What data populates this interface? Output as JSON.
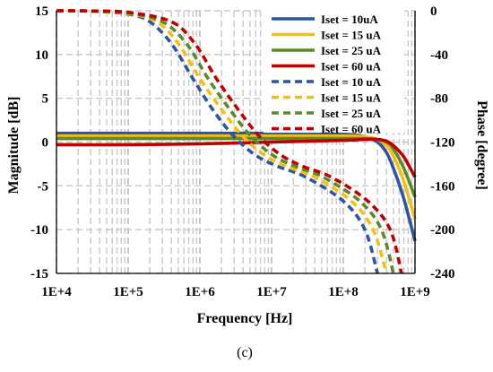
{
  "chart_data": {
    "type": "line",
    "caption": "(c)",
    "xlabel": "Frequency [Hz]",
    "ylabel_left": "Magnitude [dB]",
    "ylabel_right": "Phase [degree]",
    "x_scale": "log",
    "xlim": [
      10000,
      1000000000
    ],
    "x_ticks": [
      10000,
      100000,
      1000000,
      10000000,
      100000000,
      1000000000
    ],
    "x_tick_labels": [
      "1E+4",
      "1E+5",
      "1E+6",
      "1E+7",
      "1E+8",
      "1E+9"
    ],
    "ylim_left": [
      -15,
      15
    ],
    "y_ticks_left": [
      15,
      10,
      5,
      0,
      -5,
      -10,
      -15
    ],
    "y_tick_labels_left": [
      "15",
      "10",
      "5",
      "0",
      "-5",
      "-10",
      "-15"
    ],
    "ylim_right": [
      -240,
      0
    ],
    "y_ticks_right": [
      0,
      -40,
      -80,
      -120,
      -160,
      -200,
      -240
    ],
    "y_tick_labels_right": [
      "0",
      "-40",
      "-80",
      "-120",
      "-160",
      "-200",
      "-240"
    ],
    "grid": true,
    "legend_position": "top-right",
    "series": [
      {
        "name": "Iset = 10uA",
        "color": "#2e54a4",
        "dash": "solid",
        "axis": "left",
        "x": [
          10000,
          100000,
          1000000,
          10000000,
          100000000,
          200000000,
          300000000,
          400000000,
          500000000,
          700000000,
          1000000000
        ],
        "y": [
          1.0,
          1.0,
          1.0,
          1.0,
          0.9,
          0.6,
          0.0,
          -1.2,
          -3.0,
          -6.5,
          -11.3
        ]
      },
      {
        "name": "Iset = 15 uA",
        "color": "#f5be10",
        "dash": "solid",
        "axis": "left",
        "x": [
          10000,
          100000,
          1000000,
          10000000,
          100000000,
          200000000,
          300000000,
          400000000,
          500000000,
          700000000,
          1000000000
        ],
        "y": [
          0.7,
          0.7,
          0.7,
          0.7,
          0.7,
          0.6,
          0.3,
          -0.4,
          -1.6,
          -4.5,
          -8.8
        ]
      },
      {
        "name": "Iset = 25 uA",
        "color": "#5a8a2c",
        "dash": "solid",
        "axis": "left",
        "x": [
          10000,
          100000,
          1000000,
          10000000,
          100000000,
          200000000,
          300000000,
          400000000,
          500000000,
          700000000,
          1000000000
        ],
        "y": [
          0.4,
          0.4,
          0.4,
          0.4,
          0.4,
          0.4,
          0.3,
          0.0,
          -0.8,
          -3.0,
          -6.3
        ]
      },
      {
        "name": "Iset = 60 uA",
        "color": "#c00000",
        "dash": "solid",
        "axis": "left",
        "x": [
          10000,
          100000,
          1000000,
          10000000,
          100000000,
          200000000,
          300000000,
          400000000,
          500000000,
          700000000,
          1000000000
        ],
        "y": [
          -0.3,
          -0.3,
          -0.2,
          0.0,
          0.2,
          0.3,
          0.3,
          0.1,
          -0.4,
          -1.7,
          -4.0
        ]
      },
      {
        "name": "Iset = 10 uA",
        "color": "#2e54a4",
        "dash": "dashed",
        "axis": "right",
        "x": [
          10000,
          30000,
          100000,
          200000,
          400000,
          800000,
          1500000,
          3000000,
          6000000,
          12000000,
          30000000,
          100000000,
          200000000,
          300000000
        ],
        "y": [
          0,
          -0.3,
          -3,
          -10,
          -30,
          -62,
          -90,
          -115,
          -132,
          -142,
          -152,
          -174,
          -200,
          -240
        ]
      },
      {
        "name": "Iset = 15 uA",
        "color": "#f5be10",
        "dash": "dashed",
        "axis": "right",
        "x": [
          10000,
          30000,
          100000,
          250000,
          500000,
          1000000,
          2000000,
          4000000,
          8000000,
          16000000,
          40000000,
          130000000,
          260000000,
          400000000
        ],
        "y": [
          0,
          -0.3,
          -2.5,
          -10,
          -30,
          -62,
          -90,
          -115,
          -132,
          -142,
          -152,
          -174,
          -200,
          -240
        ]
      },
      {
        "name": "Iset = 25 uA",
        "color": "#5a8a2c",
        "dash": "dashed",
        "axis": "right",
        "x": [
          10000,
          30000,
          100000,
          300000,
          650000,
          1300000,
          2600000,
          5200000,
          10400000,
          21000000,
          52000000,
          170000000,
          340000000,
          500000000
        ],
        "y": [
          0,
          -0.3,
          -2,
          -10,
          -30,
          -62,
          -90,
          -115,
          -132,
          -142,
          -152,
          -174,
          -200,
          -240
        ]
      },
      {
        "name": "Iset = 60 uA",
        "color": "#c00000",
        "dash": "dashed",
        "axis": "right",
        "x": [
          10000,
          30000,
          100000,
          400000,
          850000,
          1700000,
          3400000,
          6800000,
          13600000,
          27000000,
          68000000,
          220000000,
          450000000,
          650000000
        ],
        "y": [
          0,
          -0.2,
          -1.5,
          -10,
          -30,
          -62,
          -90,
          -115,
          -132,
          -142,
          -152,
          -174,
          -200,
          -240
        ]
      }
    ]
  }
}
